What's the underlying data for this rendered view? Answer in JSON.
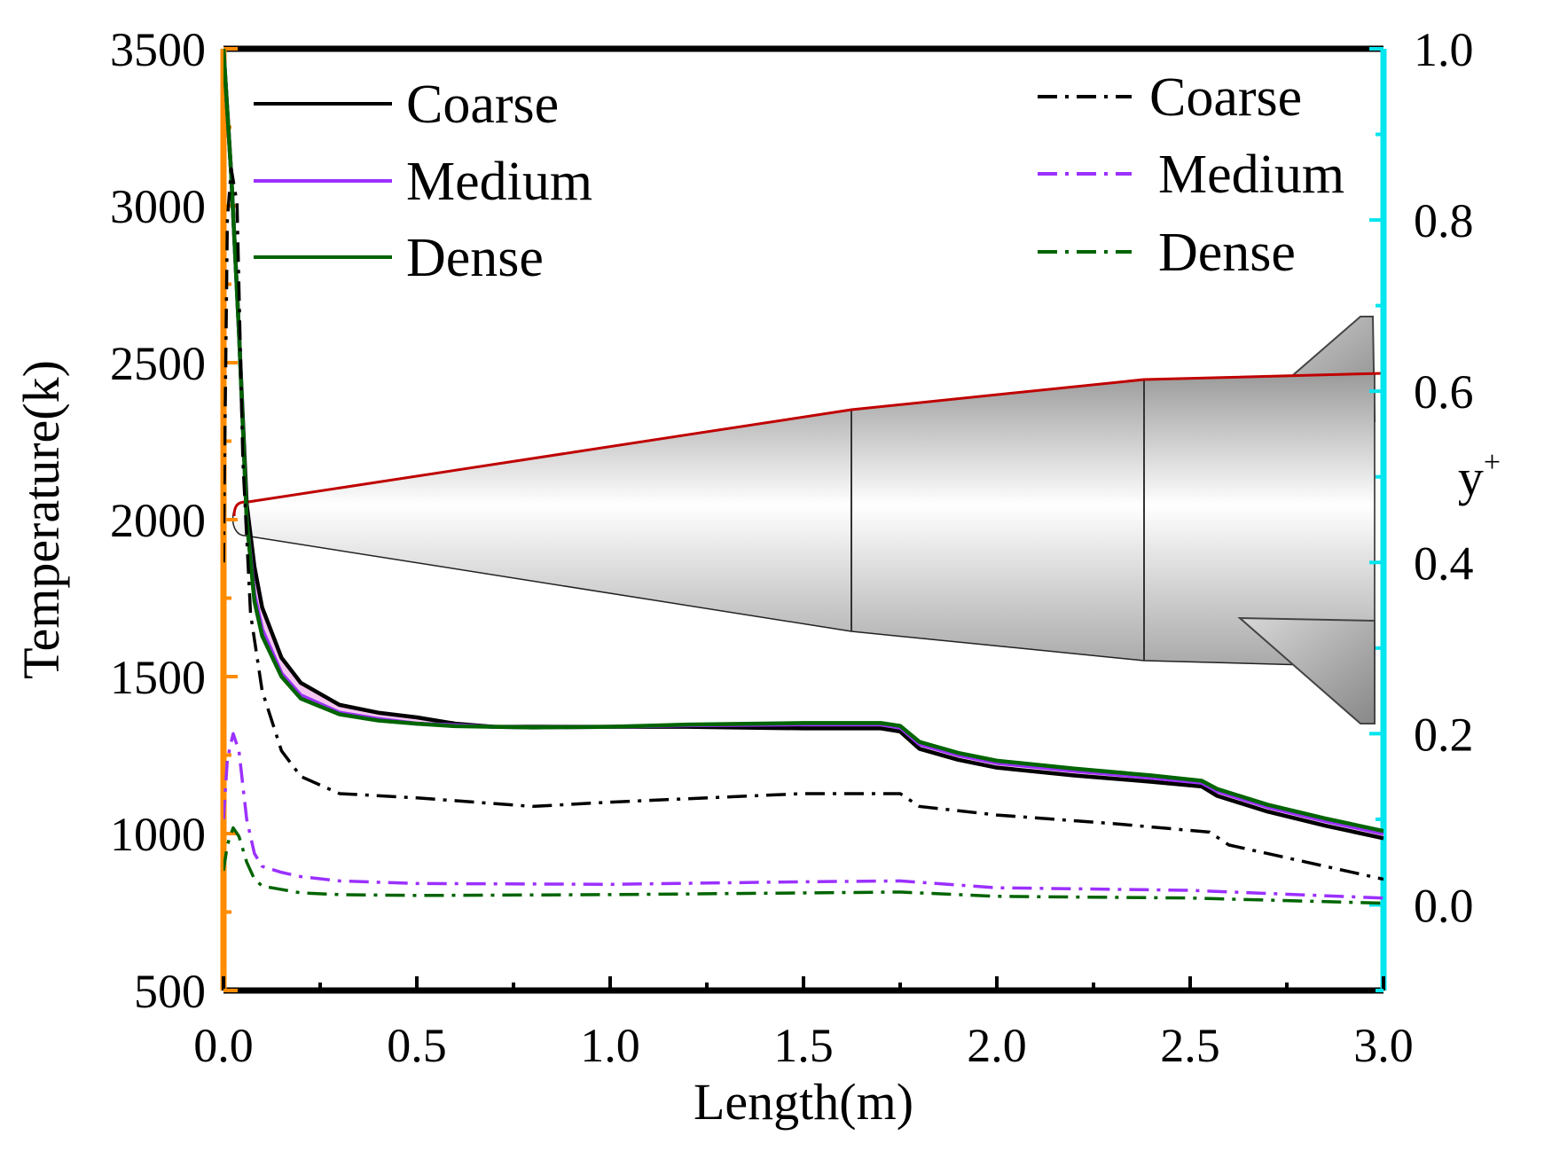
{
  "chart_data": {
    "type": "line",
    "title": "",
    "xlabel": "Length(m)",
    "ylabel_left": "Temperature(k)",
    "ylabel_right": "y",
    "ylabel_right_sup": "+",
    "xlim": [
      0.0,
      3.0
    ],
    "ylim_left": [
      500,
      3500
    ],
    "ylim_right": [
      -0.1,
      1.0
    ],
    "xticks": [
      "0.0",
      "0.5",
      "1.0",
      "1.5",
      "2.0",
      "2.5",
      "3.0"
    ],
    "yticks_left": [
      "500",
      "1000",
      "1500",
      "2000",
      "2500",
      "3000",
      "3500"
    ],
    "yticks_right": [
      "0.0",
      "0.2",
      "0.4",
      "0.6",
      "0.8",
      "1.0"
    ],
    "colors": {
      "left_axis": "#ff8c00",
      "right_axis": "#00e5ee",
      "coarse": "#000000",
      "medium": "#9b30ff",
      "dense": "#006400",
      "medium_band": "#f5c6f0",
      "vehicle_outline": "#c00000"
    },
    "legend_left": {
      "position": "top-left",
      "entries": [
        {
          "label": "Coarse",
          "color": "#000000",
          "style": "solid"
        },
        {
          "label": "Medium",
          "color": "#9b30ff",
          "style": "solid"
        },
        {
          "label": "Dense",
          "color": "#006400",
          "style": "solid"
        }
      ]
    },
    "legend_right": {
      "position": "top-right",
      "entries": [
        {
          "label": "Coarse",
          "color": "#000000",
          "style": "dashdot"
        },
        {
          "label": "Medium",
          "color": "#9b30ff",
          "style": "dashdot"
        },
        {
          "label": "Dense",
          "color": "#006400",
          "style": "dashdot"
        }
      ]
    },
    "series": [
      {
        "name": "Coarse",
        "axis": "left",
        "metric": "Temperature",
        "color": "#000000",
        "style": "solid",
        "x": [
          0.0,
          0.02,
          0.04,
          0.06,
          0.08,
          0.1,
          0.15,
          0.2,
          0.3,
          0.4,
          0.5,
          0.6,
          0.7,
          0.8,
          1.0,
          1.2,
          1.5,
          1.7,
          1.75,
          1.8,
          1.9,
          2.0,
          2.2,
          2.4,
          2.53,
          2.57,
          2.7,
          2.85,
          3.0
        ],
        "y": [
          3500,
          3100,
          2600,
          2050,
          1850,
          1720,
          1560,
          1480,
          1410,
          1385,
          1370,
          1350,
          1340,
          1340,
          1340,
          1340,
          1335,
          1335,
          1325,
          1270,
          1235,
          1210,
          1185,
          1165,
          1150,
          1120,
          1070,
          1025,
          985
        ]
      },
      {
        "name": "Medium",
        "axis": "left",
        "metric": "Temperature",
        "color": "#9b30ff",
        "style": "solid",
        "x": [
          0.0,
          0.02,
          0.04,
          0.06,
          0.08,
          0.1,
          0.15,
          0.2,
          0.3,
          0.4,
          0.5,
          0.6,
          0.7,
          0.8,
          1.0,
          1.2,
          1.5,
          1.7,
          1.75,
          1.8,
          1.9,
          2.0,
          2.2,
          2.4,
          2.53,
          2.57,
          2.7,
          2.85,
          3.0
        ],
        "y": [
          3500,
          3100,
          2600,
          2000,
          1760,
          1650,
          1510,
          1440,
          1385,
          1365,
          1350,
          1345,
          1340,
          1338,
          1340,
          1345,
          1348,
          1348,
          1338,
          1285,
          1250,
          1225,
          1200,
          1178,
          1162,
          1135,
          1085,
          1040,
          1000
        ]
      },
      {
        "name": "Dense",
        "axis": "left",
        "metric": "Temperature",
        "color": "#006400",
        "style": "solid",
        "x": [
          0.0,
          0.02,
          0.04,
          0.06,
          0.08,
          0.1,
          0.15,
          0.2,
          0.3,
          0.4,
          0.5,
          0.6,
          0.7,
          0.8,
          1.0,
          1.2,
          1.5,
          1.7,
          1.75,
          1.8,
          1.9,
          2.0,
          2.2,
          2.4,
          2.53,
          2.57,
          2.7,
          2.85,
          3.0
        ],
        "y": [
          3500,
          3100,
          2600,
          2000,
          1740,
          1630,
          1500,
          1430,
          1380,
          1360,
          1350,
          1342,
          1340,
          1338,
          1340,
          1347,
          1352,
          1352,
          1343,
          1292,
          1257,
          1232,
          1207,
          1185,
          1168,
          1142,
          1092,
          1048,
          1008
        ]
      },
      {
        "name": "Coarse",
        "axis": "right",
        "metric": "y+",
        "color": "#000000",
        "style": "dashdot",
        "x": [
          0.0,
          0.01,
          0.02,
          0.035,
          0.05,
          0.07,
          0.1,
          0.15,
          0.2,
          0.3,
          0.5,
          0.8,
          1.0,
          1.5,
          1.75,
          1.8,
          2.0,
          2.3,
          2.55,
          2.6,
          2.8,
          3.0
        ],
        "y": [
          0.4,
          0.8,
          0.86,
          0.82,
          0.52,
          0.34,
          0.25,
          0.18,
          0.15,
          0.13,
          0.125,
          0.115,
          0.12,
          0.13,
          0.13,
          0.115,
          0.105,
          0.095,
          0.085,
          0.07,
          0.05,
          0.03
        ]
      },
      {
        "name": "Medium",
        "axis": "right",
        "metric": "y+",
        "color": "#9b30ff",
        "style": "dashdot",
        "x": [
          0.0,
          0.01,
          0.025,
          0.04,
          0.06,
          0.08,
          0.1,
          0.15,
          0.2,
          0.3,
          0.5,
          1.0,
          1.5,
          1.75,
          2.0,
          2.5,
          3.0
        ],
        "y": [
          0.1,
          0.17,
          0.2,
          0.18,
          0.1,
          0.06,
          0.045,
          0.038,
          0.033,
          0.028,
          0.025,
          0.024,
          0.027,
          0.028,
          0.02,
          0.017,
          0.008
        ]
      },
      {
        "name": "Dense",
        "axis": "right",
        "metric": "y+",
        "color": "#006400",
        "style": "dashdot",
        "x": [
          0.0,
          0.01,
          0.025,
          0.04,
          0.06,
          0.08,
          0.1,
          0.15,
          0.2,
          0.3,
          0.5,
          1.0,
          1.5,
          1.75,
          2.0,
          2.5,
          3.0
        ],
        "y": [
          0.04,
          0.07,
          0.09,
          0.08,
          0.05,
          0.03,
          0.022,
          0.018,
          0.014,
          0.012,
          0.011,
          0.012,
          0.014,
          0.015,
          0.01,
          0.008,
          0.002
        ]
      }
    ]
  }
}
